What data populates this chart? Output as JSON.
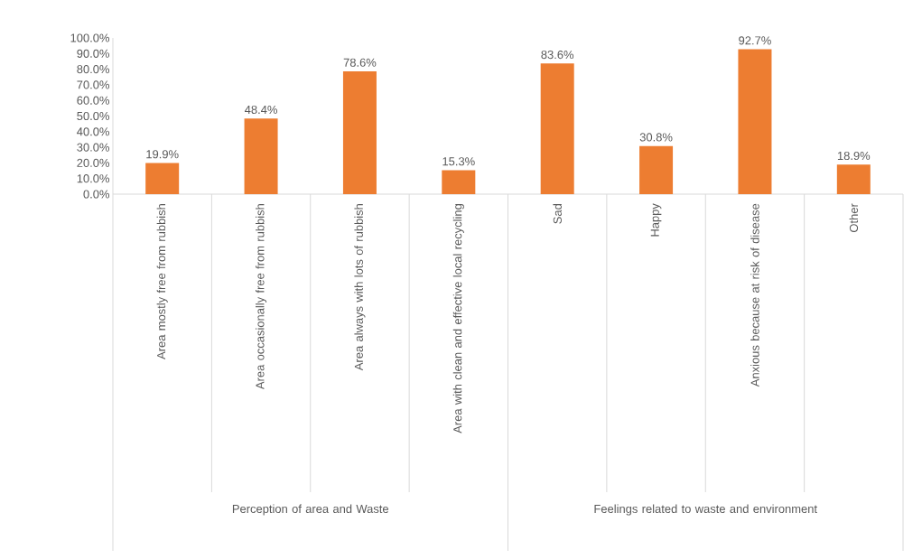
{
  "chart_data": {
    "type": "bar",
    "categories": [
      "Area mostly free from rubbish",
      "Area occasionally free from rubbish",
      "Area always with lots of rubbish",
      "Area with clean and effective local recycling",
      "Sad",
      "Happy",
      "Anxious because at risk of disease",
      "Other"
    ],
    "values": [
      19.9,
      48.4,
      78.6,
      15.3,
      83.6,
      30.8,
      92.7,
      18.9
    ],
    "color": "#ed7d31",
    "value_labels": [
      "19.9%",
      "48.4%",
      "78.6%",
      "15.3%",
      "83.6%",
      "30.8%",
      "92.7%",
      "18.9%"
    ],
    "ylim": [
      0,
      100
    ],
    "yticks": [
      {
        "value": 0,
        "label": "0.0%"
      },
      {
        "value": 10,
        "label": "10.0%"
      },
      {
        "value": 20,
        "label": "20.0%"
      },
      {
        "value": 30,
        "label": "30.0%"
      },
      {
        "value": 40,
        "label": "40.0%"
      },
      {
        "value": 50,
        "label": "50.0%"
      },
      {
        "value": 60,
        "label": "60.0%"
      },
      {
        "value": 70,
        "label": "70.0%"
      },
      {
        "value": 80,
        "label": "80.0%"
      },
      {
        "value": 90,
        "label": "90.0%"
      },
      {
        "value": 100,
        "label": "100.0%"
      }
    ],
    "annotations": [
      "Perception of area and Waste",
      "Feelings related to waste and environment"
    ]
  }
}
